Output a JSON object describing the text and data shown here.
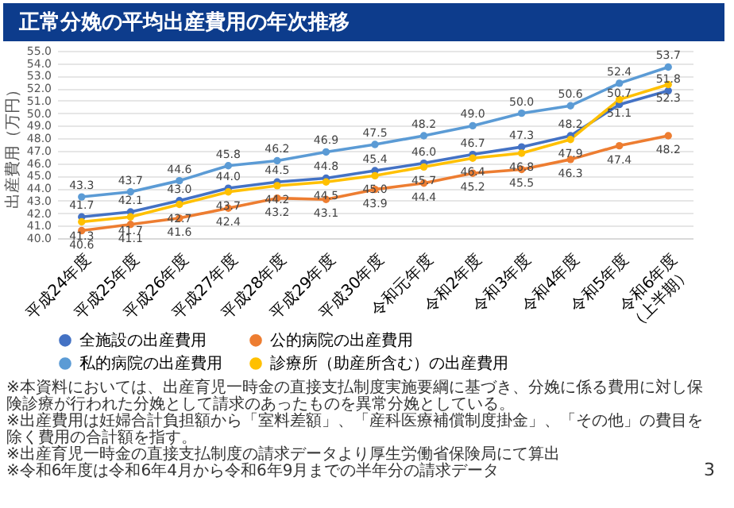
{
  "chart_data": {
    "type": "line",
    "title": "正常分娩の平均出産費用の年次推移",
    "ylabel": "出産費用（万円）",
    "categories": [
      "平成24年度",
      "平成25年度",
      "平成26年度",
      "平成27年度",
      "平成28年度",
      "平成29年度",
      "平成30年度",
      "令和元年度",
      "令和2年度",
      "令和3年度",
      "令和4年度",
      "令和5年度",
      "令和6年度\n（上半期）"
    ],
    "series": [
      {
        "name": "全施設の出産費用",
        "color": "#4472c4",
        "values": [
          41.7,
          42.1,
          43.0,
          44.0,
          44.5,
          44.8,
          45.4,
          46.0,
          46.7,
          47.3,
          48.2,
          50.7,
          51.8
        ],
        "value_labels": [
          "41.7",
          "42.1",
          "43.0",
          "44.0",
          "44.5",
          "44.8",
          "45.4",
          "46.0",
          "46.7",
          "47.3",
          "48.2",
          "50.7",
          "51.8"
        ]
      },
      {
        "name": "公的病院の出産費用",
        "color": "#ed7d31",
        "values": [
          40.6,
          41.1,
          41.6,
          42.4,
          43.2,
          43.1,
          43.9,
          44.4,
          45.2,
          45.5,
          46.3,
          47.4,
          48.2
        ],
        "value_labels": [
          "40.6",
          "41.1",
          "41.6",
          "42.4",
          "43.2",
          "43.1",
          "43.9",
          "44.4",
          "45.2",
          "45.5",
          "46.3",
          "47.4",
          "48.2"
        ]
      },
      {
        "name": "私的病院の出産費用",
        "color": "#5b9bd5",
        "values": [
          43.3,
          43.7,
          44.6,
          45.8,
          46.2,
          46.9,
          47.5,
          48.2,
          49.0,
          50.0,
          50.6,
          52.4,
          53.7
        ],
        "value_labels": [
          "43.3",
          "43.7",
          "44.6",
          "45.8",
          "46.2",
          "46.9",
          "47.5",
          "48.2",
          "49.0",
          "50.0",
          "50.6",
          "52.4",
          "53.7"
        ]
      },
      {
        "name": "診療所（助産所含む）の出産費用",
        "color": "#ffc000",
        "values": [
          41.3,
          41.7,
          42.7,
          43.7,
          44.2,
          44.5,
          45.0,
          45.7,
          46.4,
          46.8,
          47.9,
          51.1,
          52.3
        ],
        "value_labels": [
          "41.3",
          "41.7",
          "42.7",
          "43.7",
          "44.2",
          "44.5",
          "45.0",
          "45.7",
          "46.4",
          "46.8",
          "47.9",
          "51.1",
          "52.3"
        ]
      }
    ],
    "ylim": [
      40,
      55
    ],
    "yticks": [
      {
        "value": 40,
        "label": "40.0"
      },
      {
        "value": 41,
        "label": "41.0"
      },
      {
        "value": 42,
        "label": "42.0"
      },
      {
        "value": 43,
        "label": "43.0"
      },
      {
        "value": 44,
        "label": "44.0"
      },
      {
        "value": 45,
        "label": "45.0"
      },
      {
        "value": 46,
        "label": "46.0"
      },
      {
        "value": 47,
        "label": "47.0"
      },
      {
        "value": 48,
        "label": "48.0"
      },
      {
        "value": 49,
        "label": "49.0"
      },
      {
        "value": 50,
        "label": "50.0"
      },
      {
        "value": 51,
        "label": "51.0"
      },
      {
        "value": 52,
        "label": "52.0"
      },
      {
        "value": 53,
        "label": "53.0"
      },
      {
        "value": 54,
        "label": "54.0"
      },
      {
        "value": 55,
        "label": "55.0"
      }
    ],
    "grid": "y",
    "legend": "bottom",
    "marker": "circle",
    "line_style": "solid",
    "annotations": [
      "※本資料においては、出産育児一時金の直接支払制度実施要綱に基づき、分娩に係る費用に対し保険診療が行われた分娩として請求のあったものを異常分娩としている。",
      "※出産費用は妊婦合計負担額から「室料差額」、「産科医療補償制度掛金」、「その他」の費目を除く費用の合計額を指す。",
      "※出産育児一時金の直接支払制度の請求データより厚生労働省保険局にて算出",
      "※令和6年度は令和6年4月から令和6年9月までの半年分の請求データ",
      "3"
    ]
  }
}
